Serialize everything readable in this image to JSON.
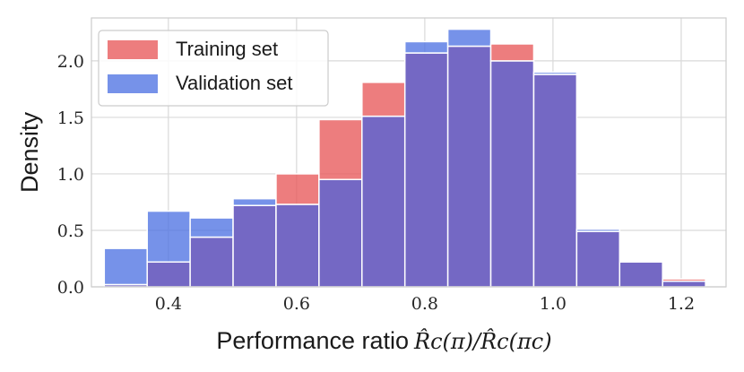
{
  "chart_data": {
    "type": "histogram",
    "title": "",
    "xlabel": "Performance ratio",
    "xlabel_math": {
      "numerator": "R̂c(π)",
      "separator": "/",
      "denominator": "R̂c(πc)"
    },
    "ylabel": "Density",
    "xlim": [
      0.28,
      1.27
    ],
    "ylim": [
      0.0,
      2.38
    ],
    "xticks": [
      "0.4",
      "0.6",
      "0.8",
      "1.0",
      "1.2"
    ],
    "xtick_values": [
      0.4,
      0.6,
      0.8,
      1.0,
      1.2
    ],
    "yticks": [
      "0.0",
      "0.5",
      "1.0",
      "1.5",
      "2.0"
    ],
    "ytick_values": [
      0.0,
      0.5,
      1.0,
      1.5,
      2.0
    ],
    "grid": true,
    "legend_position": "top-left",
    "bin_edges": [
      0.3,
      0.367,
      0.434,
      0.501,
      0.568,
      0.635,
      0.702,
      0.769,
      0.836,
      0.903,
      0.97,
      1.037,
      1.104,
      1.171,
      1.238
    ],
    "series": [
      {
        "name": "Training set",
        "color": "#e8595a",
        "values": [
          0.02,
          0.22,
          0.44,
          0.72,
          1.0,
          1.48,
          1.81,
          2.07,
          2.13,
          2.15,
          1.88,
          0.49,
          0.22,
          0.07
        ]
      },
      {
        "name": "Validation set",
        "color": "#4f73e3",
        "values": [
          0.34,
          0.67,
          0.61,
          0.78,
          0.73,
          0.95,
          1.51,
          2.17,
          2.28,
          2.0,
          1.9,
          0.51,
          0.22,
          0.05
        ]
      }
    ],
    "overlap_color": "#7468c4"
  }
}
